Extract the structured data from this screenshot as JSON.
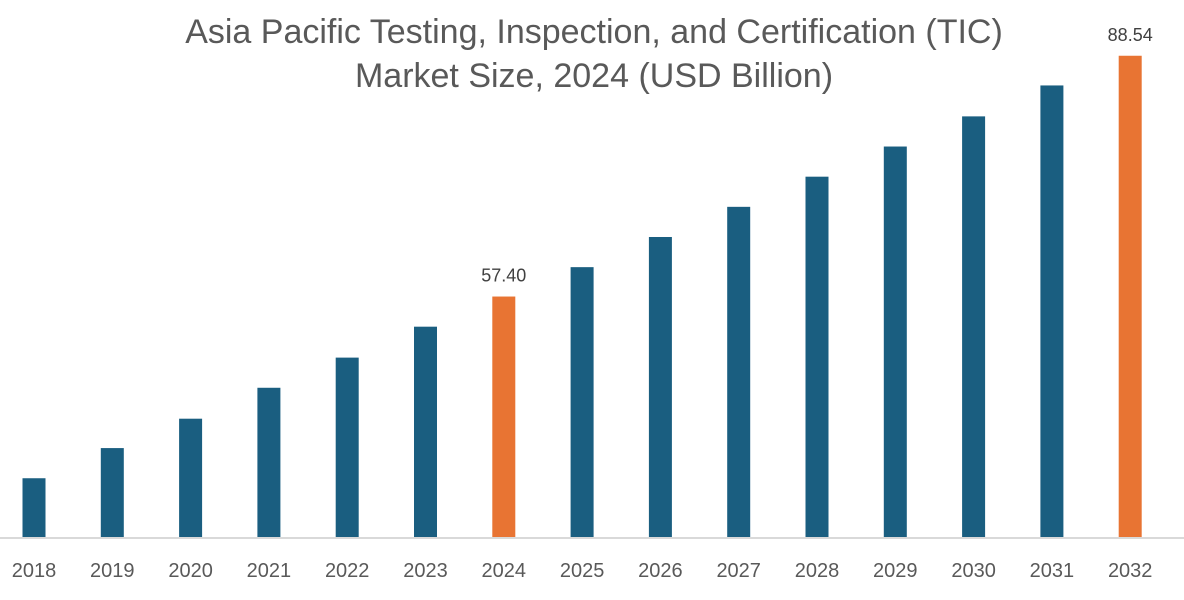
{
  "chart_data": {
    "type": "bar",
    "title": [
      "Asia Pacific Testing, Inspection, and Certification (TIC)",
      "Market Size, 2024 (USD Billion)"
    ],
    "xlabel": "",
    "ylabel": "",
    "categories": [
      "2018",
      "2019",
      "2020",
      "2021",
      "2022",
      "2023",
      "2024",
      "2025",
      "2026",
      "2027",
      "2028",
      "2029",
      "2030",
      "2031",
      "2032"
    ],
    "values": [
      33.9,
      37.8,
      41.6,
      45.6,
      49.5,
      53.5,
      57.4,
      61.2,
      65.1,
      69.0,
      72.9,
      76.8,
      80.7,
      84.7,
      88.54
    ],
    "data_labels": {
      "2024": "57.40",
      "2032": "88.54"
    },
    "highlighted": [
      "2024",
      "2032"
    ],
    "ylim": [
      26.3,
      92
    ],
    "grid": false,
    "legend": "none",
    "colors": {
      "bar": "#1a5e80",
      "highlight": "#e87433",
      "axis": "#d9d9d9",
      "text": "#595959"
    }
  }
}
